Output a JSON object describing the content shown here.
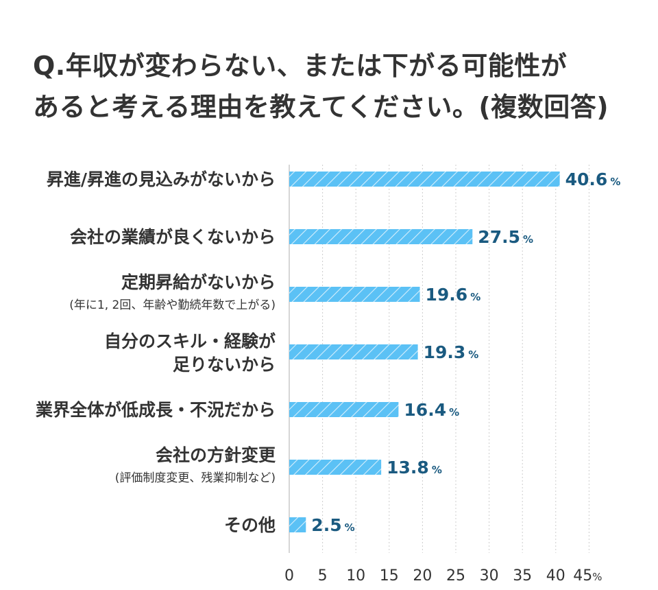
{
  "title": {
    "line1": "Q.年収が変わらない、または下がる可能性が",
    "line2": "あると考える理由を教えてください。(複数回答)"
  },
  "colors": {
    "bar": "#5bc1f5",
    "value": "#1a5a80",
    "grid": "#cccccc",
    "text": "#333333"
  },
  "chart_data": {
    "type": "bar",
    "orientation": "horizontal",
    "categories": [
      {
        "label": [
          "昇進/昇進の見込みがないから"
        ],
        "note": ""
      },
      {
        "label": [
          "会社の業績が良くないから"
        ],
        "note": ""
      },
      {
        "label": [
          "定期昇給がないから"
        ],
        "note": "(年に1, 2回、年齢や勤続年数で上がる)"
      },
      {
        "label": [
          "自分のスキル・経験が",
          "足りないから"
        ],
        "note": ""
      },
      {
        "label": [
          "業界全体が低成長・不況だから"
        ],
        "note": ""
      },
      {
        "label": [
          "会社の方針変更"
        ],
        "note": "(評価制度変更、残業抑制など)"
      },
      {
        "label": [
          "その他"
        ],
        "note": ""
      }
    ],
    "values": [
      40.6,
      27.5,
      19.6,
      19.3,
      16.4,
      13.8,
      2.5
    ],
    "value_unit": "%",
    "xlim": [
      0,
      45
    ],
    "xticks": [
      0,
      5,
      10,
      15,
      20,
      25,
      30,
      35,
      40,
      45
    ],
    "xtick_last_suffix": "%",
    "grid": "vertical dotted"
  }
}
